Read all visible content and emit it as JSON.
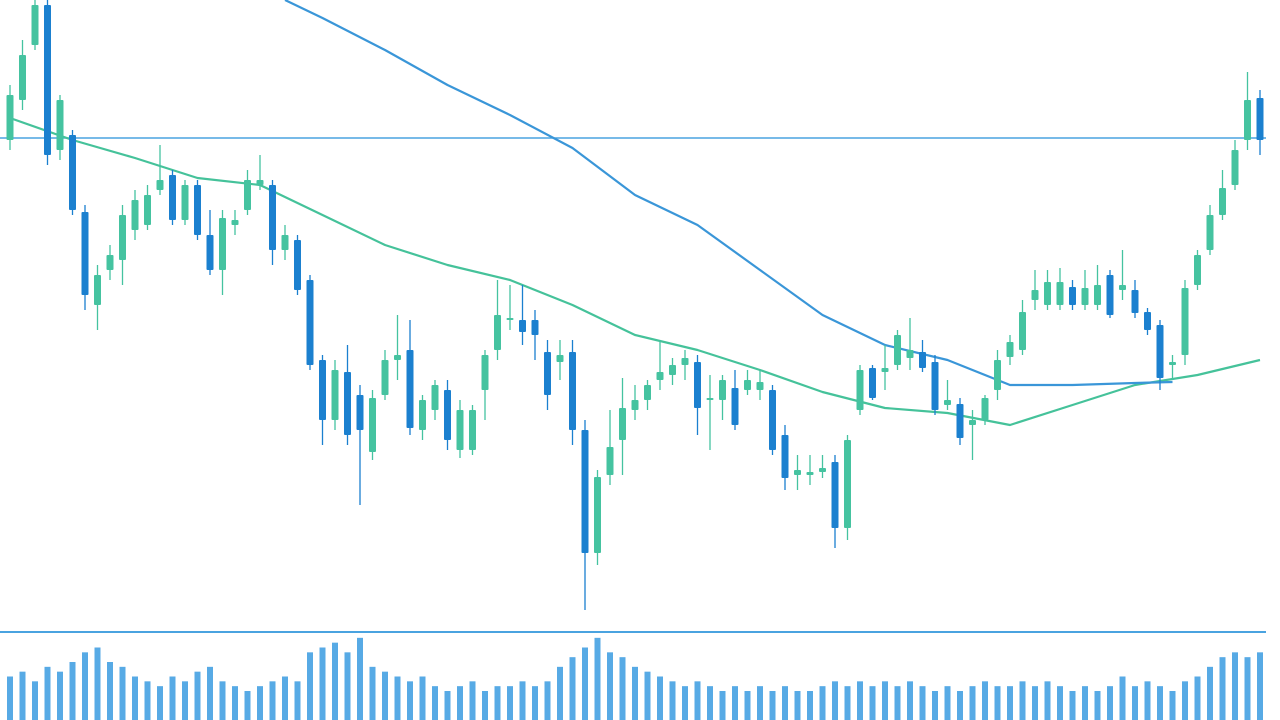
{
  "chart_data": {
    "type": "candlestick",
    "up_color": "#45c3a0",
    "down_color": "#1b80cf",
    "ylim": [
      0,
      630
    ],
    "open": [
      490,
      530,
      585,
      625,
      480,
      495,
      418,
      325,
      360,
      370,
      400,
      405,
      440,
      455,
      410,
      445,
      395,
      360,
      405,
      420,
      445,
      445,
      380,
      390,
      350,
      270,
      210,
      258,
      235,
      178,
      235,
      270,
      280,
      200,
      220,
      240,
      180,
      180,
      240,
      280,
      310,
      310,
      310,
      278,
      268,
      278,
      200,
      77,
      155,
      190,
      220,
      230,
      250,
      255,
      265,
      268,
      230,
      230,
      242,
      240,
      240,
      240,
      195,
      155,
      155,
      158,
      168,
      102,
      220,
      262,
      258,
      265,
      272,
      278,
      268,
      225,
      226,
      205,
      210,
      240,
      273,
      280,
      330,
      325,
      325,
      343,
      325,
      325,
      355,
      340,
      340,
      318,
      305,
      265,
      275,
      345,
      380,
      415,
      445,
      490,
      532
    ],
    "high": [
      545,
      590,
      630,
      630,
      535,
      500,
      425,
      365,
      385,
      425,
      440,
      445,
      485,
      460,
      450,
      450,
      420,
      420,
      420,
      460,
      475,
      450,
      405,
      395,
      355,
      275,
      270,
      285,
      245,
      240,
      280,
      315,
      310,
      235,
      250,
      250,
      230,
      225,
      280,
      350,
      345,
      345,
      320,
      290,
      290,
      290,
      210,
      160,
      220,
      252,
      245,
      250,
      290,
      272,
      280,
      275,
      255,
      255,
      260,
      260,
      260,
      245,
      205,
      175,
      175,
      175,
      175,
      195,
      265,
      265,
      285,
      300,
      312,
      290,
      275,
      250,
      232,
      220,
      235,
      280,
      295,
      330,
      360,
      360,
      362,
      350,
      360,
      365,
      360,
      380,
      350,
      322,
      310,
      275,
      350,
      380,
      425,
      460,
      490,
      558,
      540
    ],
    "low": [
      480,
      520,
      580,
      465,
      470,
      415,
      320,
      300,
      350,
      345,
      390,
      400,
      435,
      405,
      405,
      390,
      355,
      335,
      395,
      415,
      440,
      365,
      370,
      335,
      260,
      185,
      200,
      185,
      125,
      170,
      230,
      250,
      195,
      190,
      210,
      180,
      172,
      175,
      210,
      270,
      300,
      285,
      270,
      220,
      250,
      185,
      20,
      65,
      145,
      155,
      210,
      220,
      240,
      245,
      250,
      195,
      180,
      210,
      200,
      235,
      230,
      175,
      140,
      140,
      145,
      152,
      82,
      90,
      215,
      230,
      240,
      260,
      260,
      258,
      215,
      220,
      185,
      170,
      205,
      230,
      265,
      275,
      320,
      320,
      320,
      320,
      320,
      320,
      312,
      330,
      312,
      295,
      240,
      250,
      265,
      340,
      375,
      410,
      440,
      480,
      475
    ],
    "close": [
      535,
      575,
      625,
      475,
      530,
      420,
      335,
      355,
      375,
      415,
      430,
      435,
      450,
      410,
      445,
      395,
      360,
      412,
      410,
      450,
      450,
      380,
      395,
      340,
      265,
      210,
      260,
      195,
      200,
      232,
      270,
      275,
      202,
      230,
      245,
      190,
      220,
      220,
      275,
      315,
      312,
      298,
      295,
      235,
      275,
      200,
      77,
      153,
      183,
      222,
      230,
      245,
      258,
      265,
      272,
      222,
      232,
      250,
      205,
      250,
      248,
      180,
      152,
      160,
      158,
      162,
      102,
      190,
      260,
      232,
      262,
      295,
      280,
      262,
      220,
      230,
      192,
      210,
      232,
      270,
      288,
      318,
      340,
      348,
      348,
      325,
      342,
      345,
      315,
      345,
      317,
      300,
      252,
      268,
      342,
      375,
      415,
      442,
      480,
      530,
      490
    ],
    "hline": {
      "value": 492,
      "color": "#4aa3e0"
    },
    "lines": [
      {
        "color": "#45c29a",
        "x": [
          0,
          5,
          10,
          15,
          20,
          25,
          30,
          35,
          40,
          45,
          50,
          55,
          60,
          65,
          70,
          75,
          80,
          85,
          90,
          95,
          100
        ],
        "values": [
          512,
          490,
          472,
          452,
          445,
          415,
          385,
          365,
          350,
          325,
          295,
          280,
          260,
          238,
          222,
          217,
          205,
          225,
          245,
          255,
          270
        ]
      },
      {
        "color": "#3a96d8",
        "x": [
          22,
          25,
          30,
          35,
          40,
          45,
          50,
          55,
          60,
          65,
          70,
          75,
          80,
          85,
          90,
          93
        ],
        "values": [
          630,
          612,
          580,
          545,
          515,
          482,
          435,
          405,
          360,
          315,
          285,
          270,
          245,
          245,
          247,
          248
        ]
      }
    ],
    "volume": {
      "color": "#3a9be0",
      "ylim": [
        0,
        90
      ],
      "values": [
        45,
        50,
        40,
        55,
        50,
        60,
        70,
        75,
        60,
        55,
        45,
        40,
        35,
        45,
        40,
        50,
        55,
        40,
        35,
        30,
        35,
        40,
        45,
        40,
        70,
        75,
        80,
        70,
        85,
        55,
        50,
        45,
        40,
        45,
        35,
        30,
        35,
        40,
        30,
        35,
        35,
        40,
        35,
        40,
        55,
        65,
        75,
        85,
        70,
        65,
        55,
        50,
        45,
        40,
        35,
        40,
        35,
        30,
        35,
        30,
        35,
        30,
        35,
        30,
        30,
        35,
        40,
        35,
        40,
        35,
        40,
        35,
        40,
        35,
        30,
        35,
        30,
        35,
        40,
        35,
        35,
        40,
        35,
        40,
        35,
        30,
        35,
        30,
        35,
        45,
        35,
        40,
        35,
        30,
        40,
        45,
        55,
        65,
        70,
        65,
        70
      ]
    }
  }
}
